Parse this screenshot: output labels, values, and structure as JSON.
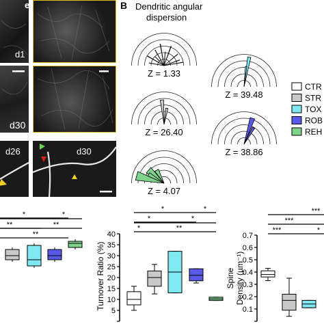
{
  "panel_b": {
    "letter": "B",
    "title_line1": "Dendritic angular",
    "title_line2": "dispersion",
    "roses": [
      {
        "condition": "CTRL",
        "z_label": "Z = 1.33",
        "color": "#ffffff"
      },
      {
        "condition": "STR",
        "z_label": "Z = 26.40",
        "color": "#c8c8c8"
      },
      {
        "condition": "REHAB",
        "z_label": "Z = 4.07",
        "color": "#7fd38d"
      },
      {
        "condition": "TOX",
        "z_label": "Z = 39.48",
        "color": "#7fe8f0"
      },
      {
        "condition": "ROBOT",
        "z_label": "Z = 38.86",
        "color": "#5a5ae6"
      }
    ],
    "legend": [
      {
        "label": "CTR",
        "color": "#ffffff"
      },
      {
        "label": "STR",
        "color": "#c8c8c8"
      },
      {
        "label": "TOX",
        "color": "#7fe8f0"
      },
      {
        "label": "ROB",
        "color": "#5a5ae6"
      },
      {
        "label": "REH",
        "color": "#7fd38d"
      }
    ]
  },
  "images": {
    "left_top_label": "d1",
    "left_mid_label": "d30",
    "dend_left_label": "d26",
    "dend_right_label": "d30",
    "corner_letter": "e"
  },
  "significance": {
    "star": "*",
    "double_star": "**",
    "triple_star": "***"
  },
  "chart_data": [
    {
      "type": "box",
      "title": "",
      "xlabel": "",
      "ylabel": "",
      "categories": [
        "STR",
        "TOX",
        "ROBOT",
        "REHAB"
      ],
      "colors": [
        "#c8c8c8",
        "#7fe8f0",
        "#5a5ae6",
        "#7fd38d"
      ],
      "ylim": [
        0,
        1
      ],
      "boxes": [
        {
          "q1": 0.86,
          "median": 0.88,
          "q3": 0.91
        },
        {
          "q1": 0.83,
          "median": 0.86,
          "q3": 0.93
        },
        {
          "q1": 0.86,
          "median": 0.88,
          "q3": 0.91
        },
        {
          "q1": 0.92,
          "median": 0.94,
          "q3": 0.95
        }
      ]
    },
    {
      "type": "box",
      "title": "",
      "ylabel": "Turnover Ratio (%)",
      "categories": [
        "CTRL",
        "STR",
        "TOX",
        "ROBOT",
        "REHAB"
      ],
      "colors": [
        "#ffffff",
        "#c8c8c8",
        "#7fe8f0",
        "#5a5ae6",
        "#7fd38d"
      ],
      "ylim": [
        0,
        40
      ],
      "yticks": [
        0,
        5,
        10,
        15,
        20,
        25,
        30,
        35,
        40
      ],
      "boxes": [
        {
          "min": 5,
          "q1": 7.5,
          "median": 10,
          "q3": 13.5,
          "max": 16
        },
        {
          "min": 12.5,
          "q1": 16,
          "median": 20,
          "q3": 23,
          "max": 26
        },
        {
          "min": 13,
          "q1": 13,
          "median": 22.5,
          "q3": 32,
          "max": 32
        },
        {
          "min": 17.5,
          "q1": 18.5,
          "median": 21,
          "q3": 24,
          "max": 24
        },
        {
          "min": 9.5,
          "q1": 9.5,
          "median": 10.2,
          "q3": 11,
          "max": 11
        }
      ]
    },
    {
      "type": "box",
      "title": "",
      "ylabel": "Spine Density (µm⁻¹)",
      "ylabel_line1": "Spine",
      "ylabel_line2": "Density (µm⁻¹)",
      "categories": [
        "CTRL",
        "STR",
        "TOX"
      ],
      "colors": [
        "#ffffff",
        "#c8c8c8",
        "#7fe8f0"
      ],
      "ylim": [
        0,
        0.7
      ],
      "yticks": [
        "0.0",
        "0.1",
        "0.2",
        "0.3",
        "0.4",
        "0.5",
        "0.6",
        "0.7"
      ],
      "boxes": [
        {
          "min": 0.33,
          "q1": 0.36,
          "median": 0.38,
          "q3": 0.41,
          "max": 0.43
        },
        {
          "min": 0.04,
          "q1": 0.09,
          "median": 0.17,
          "q3": 0.22,
          "max": 0.35
        },
        {
          "min": 0.11,
          "q1": 0.11,
          "median": 0.14,
          "q3": 0.17,
          "max": 0.17
        }
      ]
    }
  ]
}
